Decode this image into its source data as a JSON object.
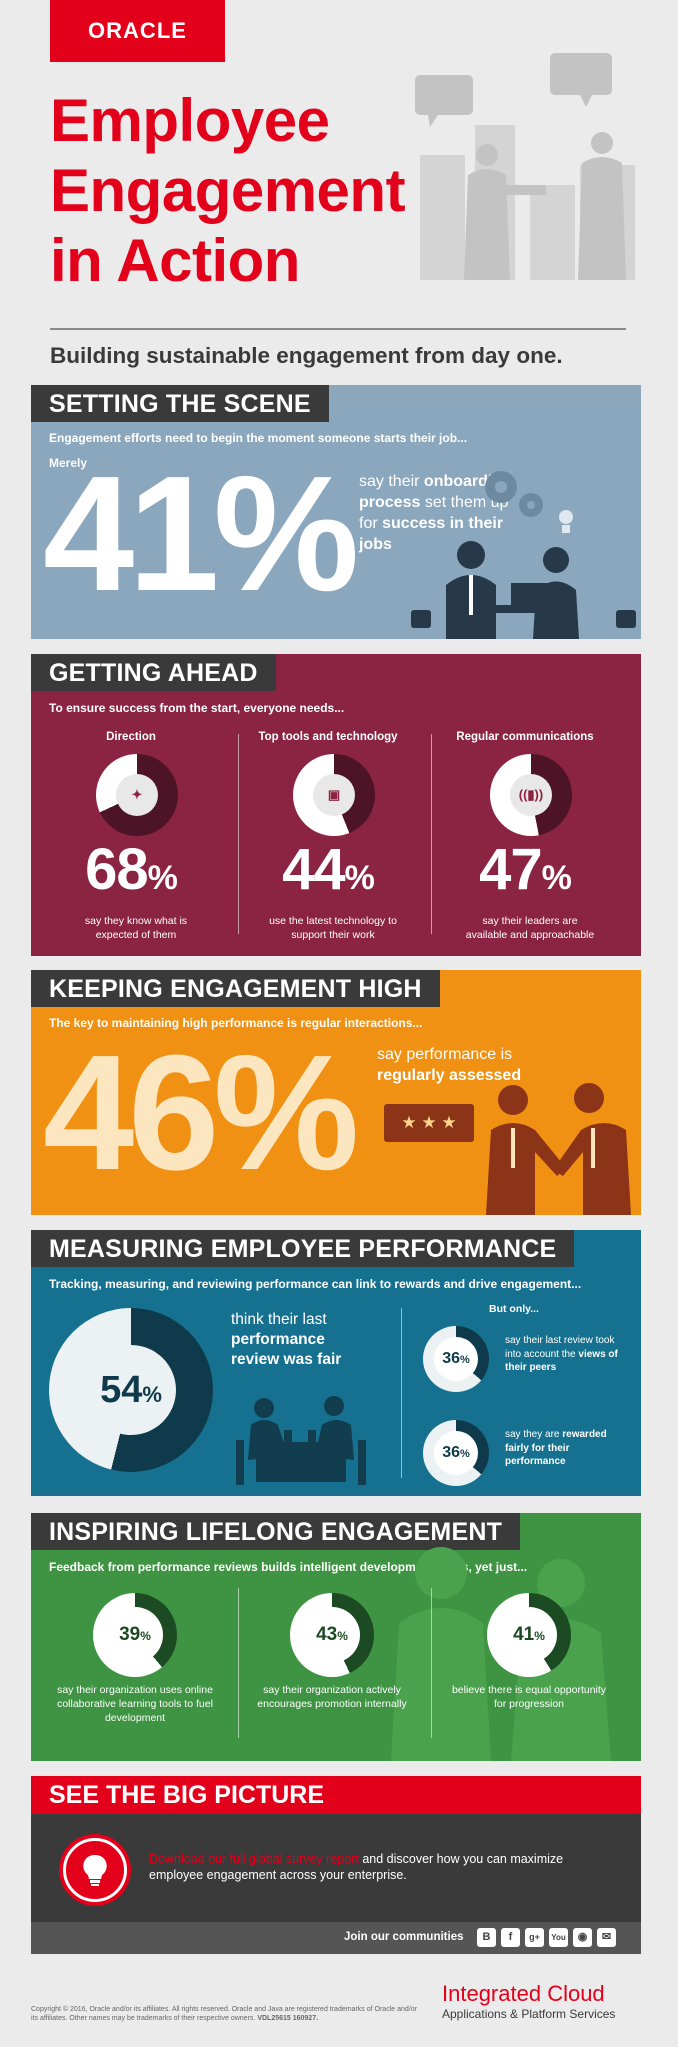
{
  "brand": {
    "logo_text": "ORACLE"
  },
  "hero": {
    "title_line1": "Employee",
    "title_line2": "Engagement",
    "title_line3": "in Action",
    "subtitle": "Building sustainable engagement from day one."
  },
  "scene": {
    "heading": "SETTING THE SCENE",
    "lead": "Engagement efforts need to begin the moment someone starts their job...",
    "prefix": "Merely",
    "big_number": "41",
    "percent_sign": "%",
    "text_a": "say their ",
    "text_b": "onboarding process",
    "text_c": " set them up for ",
    "text_d": "success in their jobs"
  },
  "ahead": {
    "heading": "GETTING AHEAD",
    "lead": "To ensure success from the start, everyone needs...",
    "columns": [
      {
        "title": "Direction",
        "value": "68",
        "desc": "say they know what is expected of them",
        "fraction": 0.68
      },
      {
        "title": "Top tools and technology",
        "value": "44",
        "desc": "use the latest technology to support their work",
        "fraction": 0.44
      },
      {
        "title": "Regular communications",
        "value": "47",
        "desc": "say their leaders are available and approachable",
        "fraction": 0.47
      }
    ]
  },
  "engagement": {
    "heading": "KEEPING ENGAGEMENT HIGH",
    "lead": "The key to maintaining high performance is regular interactions...",
    "big_number": "46",
    "percent_sign": "%",
    "text_a": "say performance is",
    "text_b": "regularly assessed",
    "stars": "★ ★ ★"
  },
  "measuring": {
    "heading": "MEASURING EMPLOYEE PERFORMANCE",
    "lead": "Tracking, measuring, and reviewing performance can link to rewards and drive engagement...",
    "main_value": "54",
    "main_fraction": 0.54,
    "main_text_a": "think their last",
    "main_text_b": "performance review was fair",
    "but_only": "But only...",
    "items": [
      {
        "value": "36",
        "fraction": 0.36,
        "text_a": "say their last review took into account the ",
        "text_b": "views of their peers"
      },
      {
        "value": "36",
        "fraction": 0.36,
        "text_a": "say they are ",
        "text_b": "rewarded fairly for their performance"
      }
    ]
  },
  "lifelong": {
    "heading": "INSPIRING LIFELONG ENGAGEMENT",
    "lead": "Feedback from performance reviews builds intelligent development plans, yet just...",
    "columns": [
      {
        "value": "39",
        "fraction": 0.39,
        "desc": "say their organization uses online collaborative learning tools to fuel development"
      },
      {
        "value": "43",
        "fraction": 0.43,
        "desc": "say their organization actively encourages promotion internally"
      },
      {
        "value": "41",
        "fraction": 0.41,
        "desc": "believe there is equal opportunity for progression"
      }
    ]
  },
  "picture": {
    "heading": "SEE THE BIG PICTURE",
    "link_text": "Download our full global survey report",
    "body_text": " and discover how you can maximize employee engagement across your enterprise.",
    "communities": "Join our communities",
    "social_icons": [
      "blogger-icon",
      "facebook-icon",
      "google-plus-icon",
      "youtube-icon",
      "web-icon",
      "email-icon"
    ]
  },
  "footer": {
    "copyright": "Copyright © 2016, Oracle and/or its affiliates. All rights reserved. Oracle and Java are registered trademarks of Oracle and/or its affiliates. Other names may be trademarks of their respective owners.",
    "code": "VDL25615 160927.",
    "brand_line1": "Integrated Cloud",
    "brand_line2": "Applications & Platform Services"
  },
  "colors": {
    "red": "#e2001a",
    "scene_bg": "#8aa7bd",
    "ahead_bg": "#8b2343",
    "engagement_bg": "#f09114",
    "measuring_bg": "#15718f",
    "lifelong_bg": "#3e9442",
    "dark": "#3a3a3a"
  }
}
